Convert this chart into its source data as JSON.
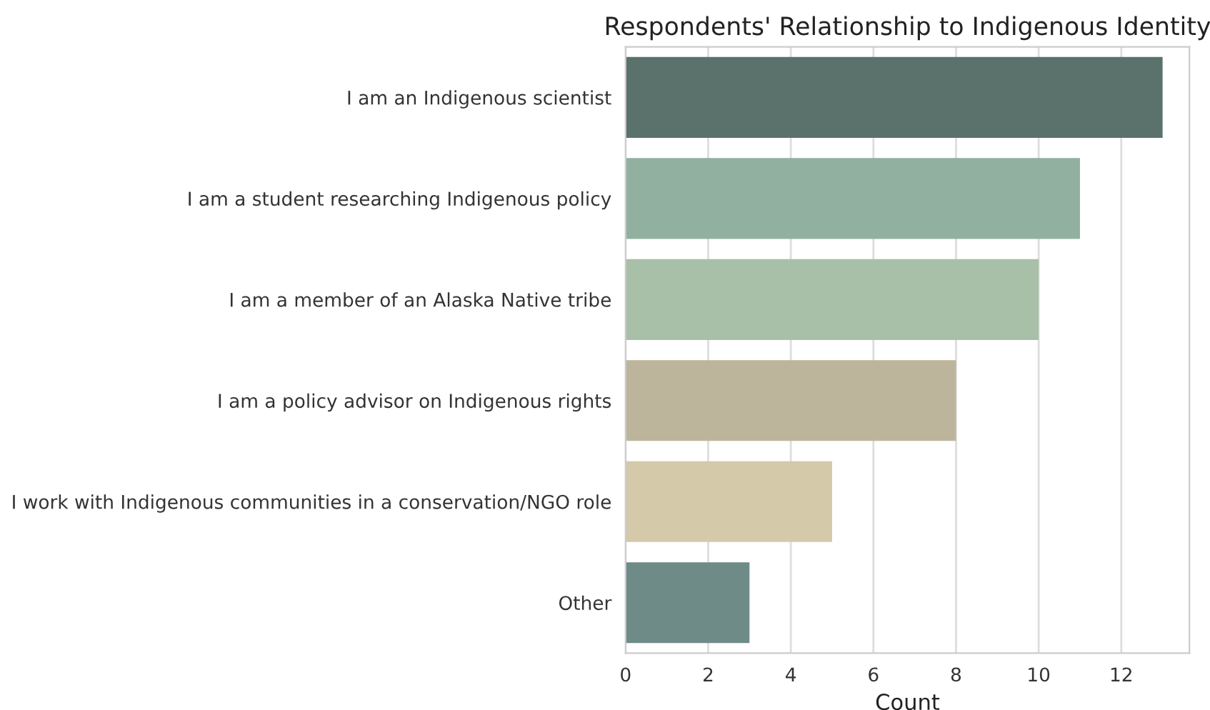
{
  "chart_data": {
    "type": "bar",
    "orientation": "horizontal",
    "title": "Respondents' Relationship to Indigenous Identity",
    "xlabel": "Count",
    "categories": [
      "I am an Indigenous scientist",
      "I am a student researching Indigenous policy",
      "I am a member of an Alaska Native tribe",
      "I am a policy advisor on Indigenous rights",
      "I work with Indigenous communities in a conservation/NGO role",
      "Other"
    ],
    "values": [
      13,
      11,
      10,
      8,
      5,
      3
    ],
    "colors": [
      "#5a716c",
      "#91b0a0",
      "#a8bfa8",
      "#bcb59b",
      "#d4c9a8",
      "#6e8b88"
    ],
    "xlim": [
      0,
      13.65
    ],
    "xticks": [
      0,
      2,
      4,
      6,
      8,
      10,
      12
    ],
    "grid": "x",
    "legend": false
  }
}
